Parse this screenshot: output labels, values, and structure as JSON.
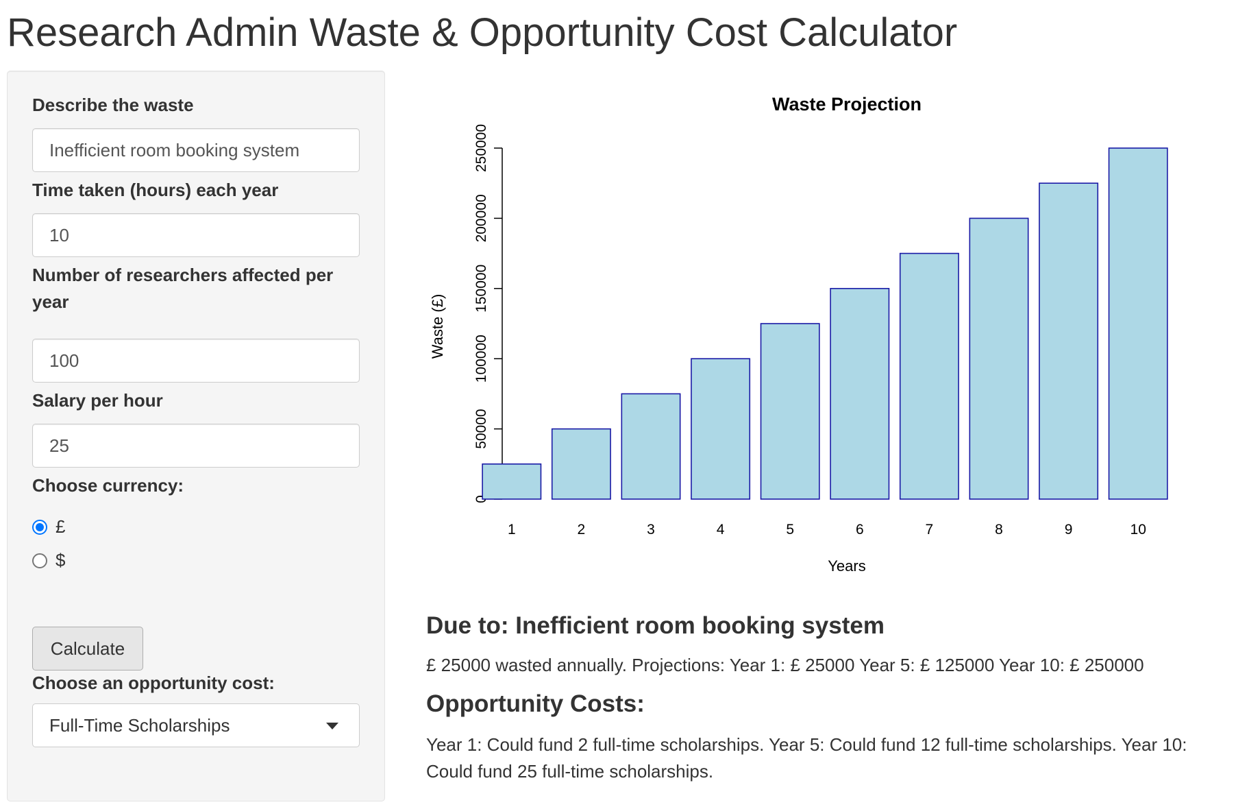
{
  "app": {
    "title": "Research Admin Waste & Opportunity Cost Calculator"
  },
  "sidebar": {
    "waste_label": "Describe the waste",
    "waste_value": "Inefficient room booking system",
    "time_label": "Time taken (hours) each year",
    "time_value": "10",
    "researchers_label_line1": "Number of researchers affected per",
    "researchers_label_line2": "year",
    "researchers_value": "100",
    "salary_label": "Salary per hour",
    "salary_value": "25",
    "currency_label": "Choose currency:",
    "currency_options": [
      {
        "label": "£",
        "checked": true
      },
      {
        "label": "$",
        "checked": false
      }
    ],
    "calculate_label": "Calculate",
    "opportunity_label": "Choose an opportunity cost:",
    "opportunity_selected": "Full-Time Scholarships"
  },
  "results": {
    "due_to": "Due to: Inefficient room booking system",
    "summary": "£ 25000 wasted annually. Projections: Year 1: £ 25000 Year 5: £ 125000 Year 10: £ 250000",
    "opportunity_heading": "Opportunity Costs:",
    "opportunity_line1": "Year 1: Could fund 2 full-time scholarships. Year 5: Could fund 12 full-time scholarships. Year 10:",
    "opportunity_line2": "Could fund 25 full-time scholarships."
  },
  "chart_data": {
    "type": "bar",
    "title": "Waste Projection",
    "xlabel": "Years",
    "ylabel": "Waste (£)",
    "categories": [
      "1",
      "2",
      "3",
      "4",
      "5",
      "6",
      "7",
      "8",
      "9",
      "10"
    ],
    "values": [
      25000,
      50000,
      75000,
      100000,
      125000,
      150000,
      175000,
      200000,
      225000,
      250000
    ],
    "yticks": [
      0,
      50000,
      100000,
      150000,
      200000,
      250000
    ],
    "ylim": [
      0,
      250000
    ],
    "grid": false,
    "legend": "none",
    "bar_fill": "#add8e6",
    "bar_stroke": "#1a1aa6"
  }
}
